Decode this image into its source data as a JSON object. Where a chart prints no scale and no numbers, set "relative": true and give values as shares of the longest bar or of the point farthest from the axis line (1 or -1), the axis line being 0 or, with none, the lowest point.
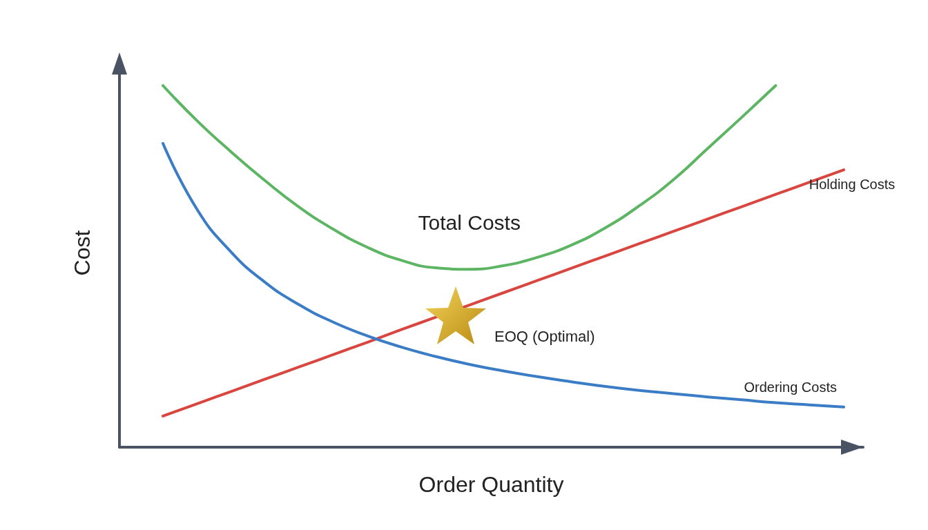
{
  "chart_data": {
    "type": "line",
    "relative": true,
    "marker": "none",
    "xlabel": "Order Quantity",
    "ylabel": "Cost",
    "annotations": [
      "EOQ (Optimal)"
    ],
    "categories": [
      null,
      null,
      null,
      null,
      null,
      null,
      null,
      null,
      null,
      null,
      null,
      null,
      null,
      null,
      null,
      null,
      null,
      null,
      null,
      null,
      null
    ],
    "series": [
      {
        "name": "Total Costs",
        "color": "#5cb562",
        "values": [
          1.0,
          0.903,
          0.817,
          0.737,
          0.664,
          0.603,
          0.553,
          0.517,
          0.496,
          0.492,
          0.502,
          0.525,
          0.559,
          0.607,
          0.668,
          0.74,
          0.826,
          0.912,
          1.0,
          null,
          null
        ]
      },
      {
        "name": "Holding Costs",
        "color": "#d9463f",
        "values": [
          0.086,
          0.12,
          0.154,
          0.188,
          0.222,
          0.256,
          0.29,
          0.325,
          0.359,
          0.393,
          0.427,
          0.461,
          0.495,
          0.529,
          0.563,
          0.597,
          0.631,
          0.665,
          0.699,
          0.733,
          0.767
        ]
      },
      {
        "name": "Ordering Costs",
        "color": "#3b7cc6",
        "values": [
          0.84,
          0.658,
          0.54,
          0.456,
          0.394,
          0.346,
          0.308,
          0.277,
          0.251,
          0.229,
          0.211,
          0.195,
          0.181,
          0.168,
          0.157,
          0.148,
          0.139,
          0.131,
          0.123,
          0.117,
          0.111
        ]
      }
    ]
  }
}
